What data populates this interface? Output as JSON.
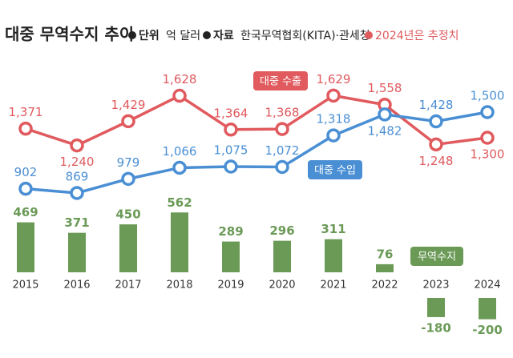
{
  "chart_data": {
    "type": "combo",
    "title": "대중 무역수지 추이",
    "notes": [
      {
        "label": "단위",
        "text": "억 달러"
      },
      {
        "label": "자료",
        "text": "한국무역협회(KITA)·관세청"
      },
      {
        "text": "2024년은 추정치",
        "color": "#e05a5e"
      }
    ],
    "categories": [
      "2015",
      "2016",
      "2017",
      "2018",
      "2019",
      "2020",
      "2021",
      "2022",
      "2023",
      "2024"
    ],
    "series": [
      {
        "name": "대중 수출",
        "type": "line",
        "color": "#e05a5e",
        "values": [
          1371,
          1240,
          1429,
          1628,
          1364,
          1368,
          1629,
          1558,
          1248,
          1300
        ],
        "value_labels": [
          "1,371",
          "1,240",
          "1,429",
          "1,628",
          "1,364",
          "1,368",
          "1,629",
          "1,558",
          "1,248",
          "1,300"
        ]
      },
      {
        "name": "대중 수입",
        "type": "line",
        "color": "#4a8fd4",
        "values": [
          902,
          869,
          979,
          1066,
          1075,
          1072,
          1318,
          1482,
          1428,
          1500
        ],
        "value_labels": [
          "902",
          "869",
          "979",
          "1,066",
          "1,075",
          "1,072",
          "1,318",
          "1,482",
          "1,428",
          "1,500"
        ]
      },
      {
        "name": "무역수지",
        "type": "bar",
        "color": "#6b9a57",
        "values": [
          469,
          371,
          450,
          562,
          289,
          296,
          311,
          76,
          -180,
          -200
        ]
      }
    ]
  }
}
